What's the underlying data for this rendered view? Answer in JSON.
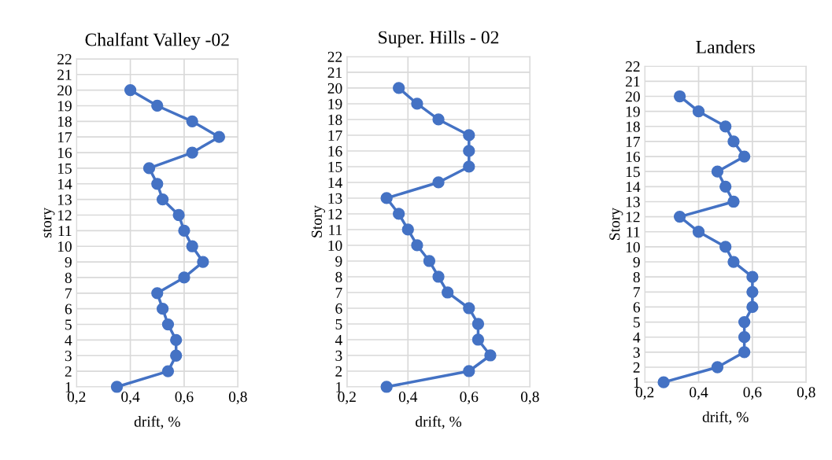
{
  "chart_data": [
    {
      "type": "line",
      "title": "Chalfant Valley -02",
      "xlabel": "drift, %",
      "ylabel": "story",
      "marker": "circle",
      "grid": true,
      "xlim": [
        0.2,
        0.8
      ],
      "xticks": [
        {
          "value": 0.2,
          "label": "0,2"
        },
        {
          "value": 0.4,
          "label": "0,4"
        },
        {
          "value": 0.6,
          "label": "0,6"
        },
        {
          "value": 0.8,
          "label": "0,8"
        }
      ],
      "ylim": [
        1,
        22
      ],
      "yticks": [
        1,
        2,
        3,
        4,
        5,
        6,
        7,
        8,
        9,
        10,
        11,
        12,
        13,
        14,
        15,
        16,
        17,
        18,
        19,
        20,
        21,
        22
      ],
      "series": [
        {
          "color": "#4472c4",
          "x": [
            0.35,
            0.54,
            0.57,
            0.57,
            0.54,
            0.52,
            0.5,
            0.6,
            0.67,
            0.63,
            0.6,
            0.58,
            0.52,
            0.5,
            0.47,
            0.63,
            0.73,
            0.63,
            0.5,
            0.4
          ],
          "values": [
            1,
            2,
            3,
            4,
            5,
            6,
            7,
            8,
            9,
            10,
            11,
            12,
            13,
            14,
            15,
            16,
            17,
            18,
            19,
            20
          ]
        }
      ]
    },
    {
      "type": "line",
      "title": "Super. Hills - 02",
      "xlabel": "drift, %",
      "ylabel": "Story",
      "marker": "circle",
      "grid": true,
      "xlim": [
        0.2,
        0.8
      ],
      "xticks": [
        {
          "value": 0.2,
          "label": "0,2"
        },
        {
          "value": 0.4,
          "label": "0,4"
        },
        {
          "value": 0.6,
          "label": "0,6"
        },
        {
          "value": 0.8,
          "label": "0,8"
        }
      ],
      "ylim": [
        1,
        22
      ],
      "yticks": [
        1,
        2,
        3,
        4,
        5,
        6,
        7,
        8,
        9,
        10,
        11,
        12,
        13,
        14,
        15,
        16,
        17,
        18,
        19,
        20,
        21,
        22
      ],
      "series": [
        {
          "color": "#4472c4",
          "x": [
            0.33,
            0.6,
            0.67,
            0.63,
            0.63,
            0.6,
            0.53,
            0.5,
            0.47,
            0.43,
            0.4,
            0.37,
            0.33,
            0.5,
            0.6,
            0.6,
            0.6,
            0.5,
            0.43,
            0.37
          ],
          "values": [
            1,
            2,
            3,
            4,
            5,
            6,
            7,
            8,
            9,
            10,
            11,
            12,
            13,
            14,
            15,
            16,
            17,
            18,
            19,
            20
          ]
        }
      ]
    },
    {
      "type": "line",
      "title": "Landers",
      "xlabel": "drift, %",
      "ylabel": "Story",
      "marker": "circle",
      "grid": true,
      "xlim": [
        0.2,
        0.8
      ],
      "xticks": [
        {
          "value": 0.2,
          "label": "0,2"
        },
        {
          "value": 0.4,
          "label": "0,4"
        },
        {
          "value": 0.6,
          "label": "0,6"
        },
        {
          "value": 0.8,
          "label": "0,8"
        }
      ],
      "ylim": [
        1,
        22
      ],
      "yticks": [
        1,
        2,
        3,
        4,
        5,
        6,
        7,
        8,
        9,
        10,
        11,
        12,
        13,
        14,
        15,
        16,
        17,
        18,
        19,
        20,
        21,
        22
      ],
      "series": [
        {
          "color": "#4472c4",
          "x": [
            0.27,
            0.47,
            0.57,
            0.57,
            0.57,
            0.6,
            0.6,
            0.6,
            0.53,
            0.5,
            0.4,
            0.33,
            0.53,
            0.5,
            0.47,
            0.57,
            0.53,
            0.5,
            0.4,
            0.33
          ],
          "values": [
            1,
            2,
            3,
            4,
            5,
            6,
            7,
            8,
            9,
            10,
            11,
            12,
            13,
            14,
            15,
            16,
            17,
            18,
            19,
            20
          ]
        }
      ]
    }
  ]
}
